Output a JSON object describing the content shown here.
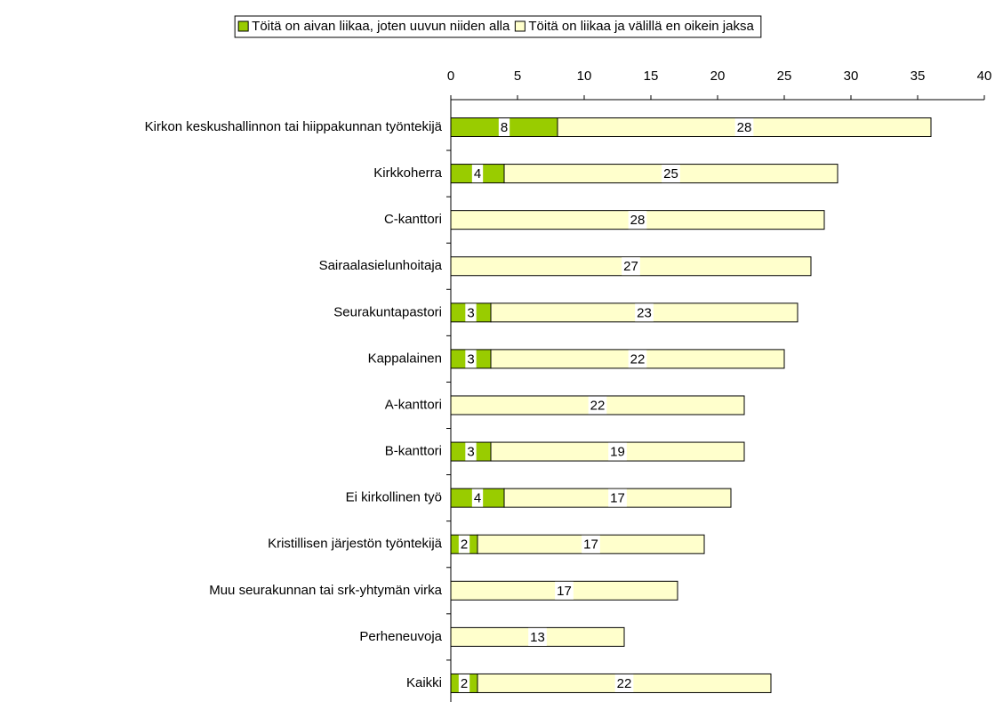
{
  "chart_data": {
    "type": "stacked-barh",
    "categories": [
      "Kirkon keskushallinnon tai hiippakunnan työntekijä",
      "Kirkkoherra",
      "C-kanttori",
      "Sairaalasielunhoitaja",
      "Seurakuntapastori",
      "Kappalainen",
      "A-kanttori",
      "B-kanttori",
      "Ei kirkollinen työ",
      "Kristillisen järjestön työntekijä",
      "Muu seurakunnan tai srk-yhtymän virka",
      "Perheneuvoja",
      "Kaikki"
    ],
    "series": [
      {
        "name": "Töitä on aivan liikaa, joten uuvun niiden alla",
        "color": "#99cc00",
        "values": [
          8,
          4,
          null,
          null,
          3,
          3,
          null,
          3,
          4,
          2,
          null,
          null,
          2
        ]
      },
      {
        "name": "Töitä on liikaa ja välillä en oikein jaksa",
        "color": "#ffffcc",
        "values": [
          28,
          25,
          28,
          27,
          23,
          22,
          22,
          19,
          17,
          17,
          17,
          13,
          22
        ]
      }
    ],
    "xlim": [
      0,
      40
    ],
    "xticks": [
      0,
      5,
      10,
      15,
      20,
      25,
      30,
      35,
      40
    ],
    "legend": "top"
  }
}
